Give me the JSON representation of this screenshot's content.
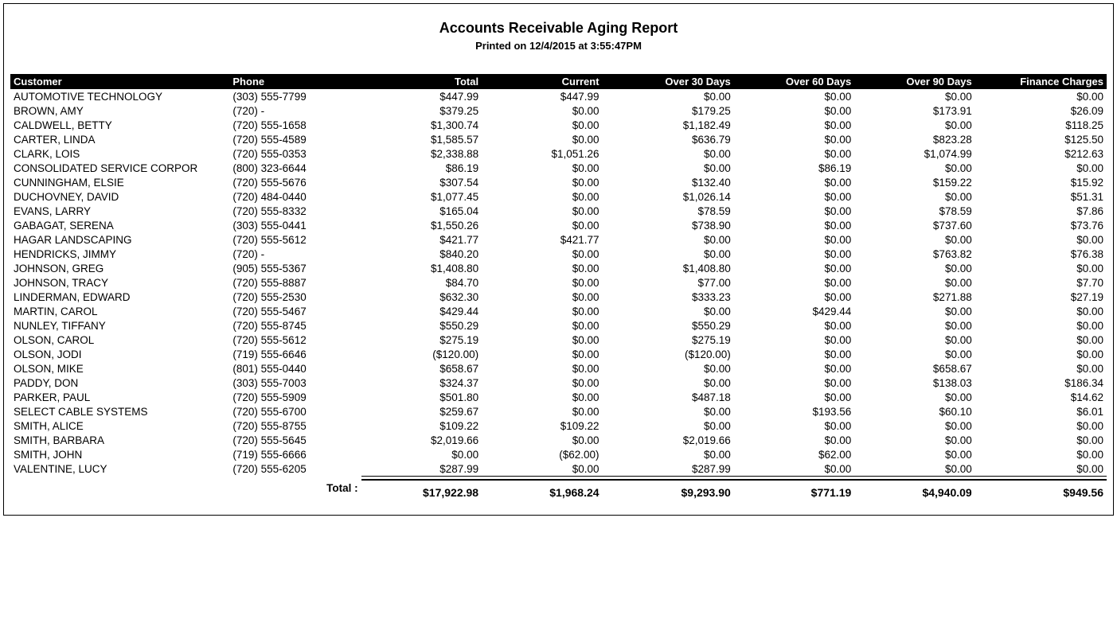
{
  "report": {
    "title": "Accounts Receivable Aging Report",
    "subtitle": "Printed on 12/4/2015 at  3:55:47PM",
    "columns": [
      "Customer",
      "Phone",
      "Total",
      "Current",
      "Over 30 Days",
      "Over 60 Days",
      "Over 90 Days",
      "Finance Charges"
    ],
    "rows": [
      {
        "customer": "AUTOMOTIVE TECHNOLOGY",
        "phone": "(303) 555-7799",
        "total": "$447.99",
        "current": "$447.99",
        "over30": "$0.00",
        "over60": "$0.00",
        "over90": "$0.00",
        "fc": "$0.00"
      },
      {
        "customer": "BROWN, AMY",
        "phone": "(720)    -",
        "total": "$379.25",
        "current": "$0.00",
        "over30": "$179.25",
        "over60": "$0.00",
        "over90": "$173.91",
        "fc": "$26.09"
      },
      {
        "customer": "CALDWELL, BETTY",
        "phone": "(720) 555-1658",
        "total": "$1,300.74",
        "current": "$0.00",
        "over30": "$1,182.49",
        "over60": "$0.00",
        "over90": "$0.00",
        "fc": "$118.25"
      },
      {
        "customer": "CARTER, LINDA",
        "phone": "(720) 555-4589",
        "total": "$1,585.57",
        "current": "$0.00",
        "over30": "$636.79",
        "over60": "$0.00",
        "over90": "$823.28",
        "fc": "$125.50"
      },
      {
        "customer": "CLARK, LOIS",
        "phone": "(720) 555-0353",
        "total": "$2,338.88",
        "current": "$1,051.26",
        "over30": "$0.00",
        "over60": "$0.00",
        "over90": "$1,074.99",
        "fc": "$212.63"
      },
      {
        "customer": "CONSOLIDATED SERVICE CORPOR",
        "phone": "(800) 323-6644",
        "total": "$86.19",
        "current": "$0.00",
        "over30": "$0.00",
        "over60": "$86.19",
        "over90": "$0.00",
        "fc": "$0.00"
      },
      {
        "customer": "CUNNINGHAM, ELSIE",
        "phone": "(720) 555-5676",
        "total": "$307.54",
        "current": "$0.00",
        "over30": "$132.40",
        "over60": "$0.00",
        "over90": "$159.22",
        "fc": "$15.92"
      },
      {
        "customer": "DUCHOVNEY, DAVID",
        "phone": "(720) 484-0440",
        "total": "$1,077.45",
        "current": "$0.00",
        "over30": "$1,026.14",
        "over60": "$0.00",
        "over90": "$0.00",
        "fc": "$51.31"
      },
      {
        "customer": "EVANS, LARRY",
        "phone": "(720) 555-8332",
        "total": "$165.04",
        "current": "$0.00",
        "over30": "$78.59",
        "over60": "$0.00",
        "over90": "$78.59",
        "fc": "$7.86"
      },
      {
        "customer": "GABAGAT, SERENA",
        "phone": "(303) 555-0441",
        "total": "$1,550.26",
        "current": "$0.00",
        "over30": "$738.90",
        "over60": "$0.00",
        "over90": "$737.60",
        "fc": "$73.76"
      },
      {
        "customer": "HAGAR LANDSCAPING",
        "phone": "(720) 555-5612",
        "total": "$421.77",
        "current": "$421.77",
        "over30": "$0.00",
        "over60": "$0.00",
        "over90": "$0.00",
        "fc": "$0.00"
      },
      {
        "customer": "HENDRICKS, JIMMY",
        "phone": "(720)    -",
        "total": "$840.20",
        "current": "$0.00",
        "over30": "$0.00",
        "over60": "$0.00",
        "over90": "$763.82",
        "fc": "$76.38"
      },
      {
        "customer": "JOHNSON, GREG",
        "phone": "(905) 555-5367",
        "total": "$1,408.80",
        "current": "$0.00",
        "over30": "$1,408.80",
        "over60": "$0.00",
        "over90": "$0.00",
        "fc": "$0.00"
      },
      {
        "customer": "JOHNSON, TRACY",
        "phone": "(720) 555-8887",
        "total": "$84.70",
        "current": "$0.00",
        "over30": "$77.00",
        "over60": "$0.00",
        "over90": "$0.00",
        "fc": "$7.70"
      },
      {
        "customer": "LINDERMAN, EDWARD",
        "phone": "(720) 555-2530",
        "total": "$632.30",
        "current": "$0.00",
        "over30": "$333.23",
        "over60": "$0.00",
        "over90": "$271.88",
        "fc": "$27.19"
      },
      {
        "customer": "MARTIN, CAROL",
        "phone": "(720) 555-5467",
        "total": "$429.44",
        "current": "$0.00",
        "over30": "$0.00",
        "over60": "$429.44",
        "over90": "$0.00",
        "fc": "$0.00"
      },
      {
        "customer": "NUNLEY, TIFFANY",
        "phone": "(720) 555-8745",
        "total": "$550.29",
        "current": "$0.00",
        "over30": "$550.29",
        "over60": "$0.00",
        "over90": "$0.00",
        "fc": "$0.00"
      },
      {
        "customer": "OLSON, CAROL",
        "phone": "(720) 555-5612",
        "total": "$275.19",
        "current": "$0.00",
        "over30": "$275.19",
        "over60": "$0.00",
        "over90": "$0.00",
        "fc": "$0.00"
      },
      {
        "customer": "OLSON, JODI",
        "phone": "(719) 555-6646",
        "total": "($120.00)",
        "current": "$0.00",
        "over30": "($120.00)",
        "over60": "$0.00",
        "over90": "$0.00",
        "fc": "$0.00"
      },
      {
        "customer": "OLSON, MIKE",
        "phone": "(801) 555-0440",
        "total": "$658.67",
        "current": "$0.00",
        "over30": "$0.00",
        "over60": "$0.00",
        "over90": "$658.67",
        "fc": "$0.00"
      },
      {
        "customer": "PADDY, DON",
        "phone": "(303) 555-7003",
        "total": "$324.37",
        "current": "$0.00",
        "over30": "$0.00",
        "over60": "$0.00",
        "over90": "$138.03",
        "fc": "$186.34"
      },
      {
        "customer": "PARKER, PAUL",
        "phone": "(720) 555-5909",
        "total": "$501.80",
        "current": "$0.00",
        "over30": "$487.18",
        "over60": "$0.00",
        "over90": "$0.00",
        "fc": "$14.62"
      },
      {
        "customer": "SELECT CABLE SYSTEMS",
        "phone": "(720) 555-6700",
        "total": "$259.67",
        "current": "$0.00",
        "over30": "$0.00",
        "over60": "$193.56",
        "over90": "$60.10",
        "fc": "$6.01"
      },
      {
        "customer": "SMITH, ALICE",
        "phone": "(720) 555-8755",
        "total": "$109.22",
        "current": "$109.22",
        "over30": "$0.00",
        "over60": "$0.00",
        "over90": "$0.00",
        "fc": "$0.00"
      },
      {
        "customer": "SMITH, BARBARA",
        "phone": "(720) 555-5645",
        "total": "$2,019.66",
        "current": "$0.00",
        "over30": "$2,019.66",
        "over60": "$0.00",
        "over90": "$0.00",
        "fc": "$0.00"
      },
      {
        "customer": "SMITH, JOHN",
        "phone": "(719) 555-6666",
        "total": "$0.00",
        "current": "($62.00)",
        "over30": "$0.00",
        "over60": "$62.00",
        "over90": "$0.00",
        "fc": "$0.00"
      },
      {
        "customer": "VALENTINE, LUCY",
        "phone": "(720) 555-6205",
        "total": "$287.99",
        "current": "$0.00",
        "over30": "$287.99",
        "over60": "$0.00",
        "over90": "$0.00",
        "fc": "$0.00"
      }
    ],
    "totals": {
      "label": "Total :",
      "total": "$17,922.98",
      "current": "$1,968.24",
      "over30": "$9,293.90",
      "over60": "$771.19",
      "over90": "$4,940.09",
      "fc": "$949.56"
    },
    "styling": {
      "header_bg": "#000000",
      "header_fg": "#ffffff",
      "body_bg": "#ffffff",
      "text_color": "#000000",
      "border_color": "#000000",
      "title_fontsize": 18,
      "subtitle_fontsize": 13,
      "header_fontsize": 13,
      "row_fontsize": 13.5,
      "totals_fontsize": 14,
      "font_family": "Arial, Helvetica, sans-serif",
      "column_alignment": [
        "left",
        "left",
        "right",
        "right",
        "right",
        "right",
        "right",
        "right"
      ]
    }
  }
}
